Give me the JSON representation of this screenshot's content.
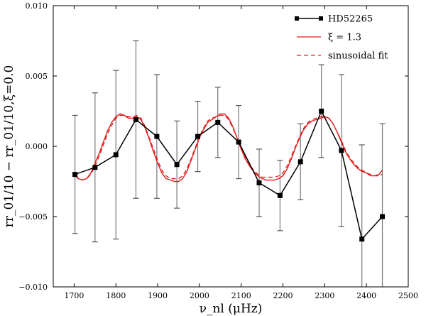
{
  "chart_data": {
    "type": "line",
    "title": "",
    "xlabel": "ν_nl (μHz)",
    "ylabel": "rr_01/10 − rr_01/10,ξ=0.0",
    "xlim": [
      1650,
      2500
    ],
    "ylim": [
      -0.01,
      0.01
    ],
    "xticks": [
      1700,
      1800,
      1900,
      2000,
      2100,
      2200,
      2300,
      2400,
      2500
    ],
    "yticks": [
      -0.01,
      -0.005,
      0.0,
      0.005,
      0.01
    ],
    "xtick_labels": [
      "1700",
      "1800",
      "1900",
      "2000",
      "2100",
      "2200",
      "2300",
      "2400",
      "2500"
    ],
    "ytick_labels": [
      "−0.010",
      "−0.005",
      "0.000",
      "0.005",
      "0.010"
    ],
    "legend_position": "top-right",
    "colors": {
      "data": "#000000",
      "model": "#e01a1a",
      "fit": "#e01a1a",
      "errorbar": "#777777"
    },
    "series": [
      {
        "name": "HD52265",
        "style": "black-line-square-markers",
        "x": [
          1702,
          1750,
          1800,
          1848,
          1898,
          1946,
          1996,
          2044,
          2094,
          2143,
          2193,
          2242,
          2292,
          2340,
          2389,
          2438
        ],
        "y": [
          -0.002,
          -0.0015,
          -0.0006,
          0.0019,
          0.0007,
          -0.0013,
          0.0007,
          0.0017,
          0.0003,
          -0.0026,
          -0.0035,
          -0.0011,
          0.0025,
          -0.0003,
          -0.0066,
          -0.005
        ],
        "yerr": [
          0.0042,
          0.0053,
          0.006,
          0.0056,
          0.0044,
          0.0031,
          0.0025,
          0.0025,
          0.0026,
          0.0024,
          0.0025,
          0.0027,
          0.0033,
          0.0054,
          0.0067,
          0.0066
        ]
      },
      {
        "name": "ξ = 1.3",
        "style": "red-solid-line",
        "x": [
          1702,
          1710,
          1720,
          1730,
          1740,
          1750,
          1760,
          1770,
          1780,
          1790,
          1800,
          1810,
          1820,
          1830,
          1840,
          1850,
          1860,
          1870,
          1880,
          1890,
          1900,
          1910,
          1920,
          1930,
          1940,
          1950,
          1960,
          1970,
          1980,
          1990,
          2000,
          2010,
          2020,
          2030,
          2040,
          2050,
          2060,
          2070,
          2080,
          2090,
          2100,
          2110,
          2120,
          2130,
          2140,
          2150,
          2160,
          2170,
          2180,
          2190,
          2200,
          2210,
          2220,
          2230,
          2240,
          2250,
          2260,
          2270,
          2280,
          2290,
          2300,
          2310,
          2320,
          2330,
          2340,
          2350,
          2360,
          2370,
          2380,
          2390,
          2400,
          2410,
          2420,
          2430,
          2438
        ],
        "y": [
          -0.0019,
          -0.0023,
          -0.0024,
          -0.0023,
          -0.0019,
          -0.0012,
          -0.0005,
          0.0003,
          0.0011,
          0.0017,
          0.0021,
          0.0023,
          0.0022,
          0.002,
          0.002,
          0.0021,
          0.0019,
          0.0013,
          0.0005,
          -0.0004,
          -0.0012,
          -0.0019,
          -0.0023,
          -0.0024,
          -0.0025,
          -0.0025,
          -0.0023,
          -0.0018,
          -0.001,
          -0.0002,
          0.0006,
          0.0012,
          0.0017,
          0.0019,
          0.0021,
          0.0023,
          0.0023,
          0.002,
          0.0014,
          0.0006,
          -0.0002,
          -0.0009,
          -0.0014,
          -0.0018,
          -0.0021,
          -0.0023,
          -0.0024,
          -0.0024,
          -0.0024,
          -0.0023,
          -0.0021,
          -0.0016,
          -0.0009,
          -0.0001,
          0.0006,
          0.0012,
          0.0016,
          0.0018,
          0.0019,
          0.002,
          0.0021,
          0.002,
          0.0016,
          0.001,
          0.0003,
          -0.0004,
          -0.0009,
          -0.0013,
          -0.0016,
          -0.0018,
          -0.0019,
          -0.0021,
          -0.0021,
          -0.002,
          -0.0017
        ]
      },
      {
        "name": "sinusoidal fit",
        "style": "red-dashed-line",
        "x": [
          1702,
          1710,
          1720,
          1730,
          1740,
          1750,
          1760,
          1770,
          1780,
          1790,
          1800,
          1810,
          1820,
          1830,
          1840,
          1850,
          1860,
          1870,
          1880,
          1890,
          1900,
          1910,
          1920,
          1930,
          1940,
          1950,
          1960,
          1970,
          1980,
          1990,
          2000,
          2010,
          2020,
          2030,
          2040,
          2050,
          2060,
          2070,
          2080,
          2090,
          2100,
          2110,
          2120,
          2130,
          2140,
          2150,
          2160,
          2170,
          2180,
          2190,
          2200,
          2210,
          2220,
          2230,
          2240,
          2250,
          2260,
          2270,
          2280,
          2290,
          2300,
          2310,
          2320,
          2330,
          2340,
          2350,
          2360,
          2370,
          2380,
          2390,
          2400,
          2410,
          2420,
          2430,
          2438
        ],
        "y": [
          -0.0021,
          -0.0023,
          -0.0024,
          -0.0023,
          -0.002,
          -0.0014,
          -0.0007,
          0.0001,
          0.0009,
          0.0015,
          0.002,
          0.0022,
          0.0022,
          0.0021,
          0.0021,
          0.0022,
          0.002,
          0.0014,
          0.0006,
          -0.0002,
          -0.001,
          -0.0017,
          -0.0021,
          -0.0023,
          -0.0023,
          -0.0023,
          -0.0021,
          -0.0016,
          -0.0009,
          -0.0001,
          0.0007,
          0.0013,
          0.0018,
          0.002,
          0.0021,
          0.0022,
          0.0022,
          0.0019,
          0.0013,
          0.0006,
          -0.0002,
          -0.0008,
          -0.0013,
          -0.0017,
          -0.002,
          -0.0022,
          -0.0022,
          -0.0022,
          -0.0022,
          -0.0021,
          -0.0019,
          -0.0014,
          -0.0007,
          0.0,
          0.0007,
          0.0013,
          0.0017,
          0.0019,
          0.002,
          0.0021,
          0.0021,
          0.002,
          0.0016,
          0.001,
          0.0004,
          -0.0003,
          -0.0008,
          -0.0012,
          -0.0015,
          -0.0017,
          -0.0019,
          -0.002,
          -0.0021,
          -0.0021,
          -0.002
        ]
      }
    ]
  }
}
